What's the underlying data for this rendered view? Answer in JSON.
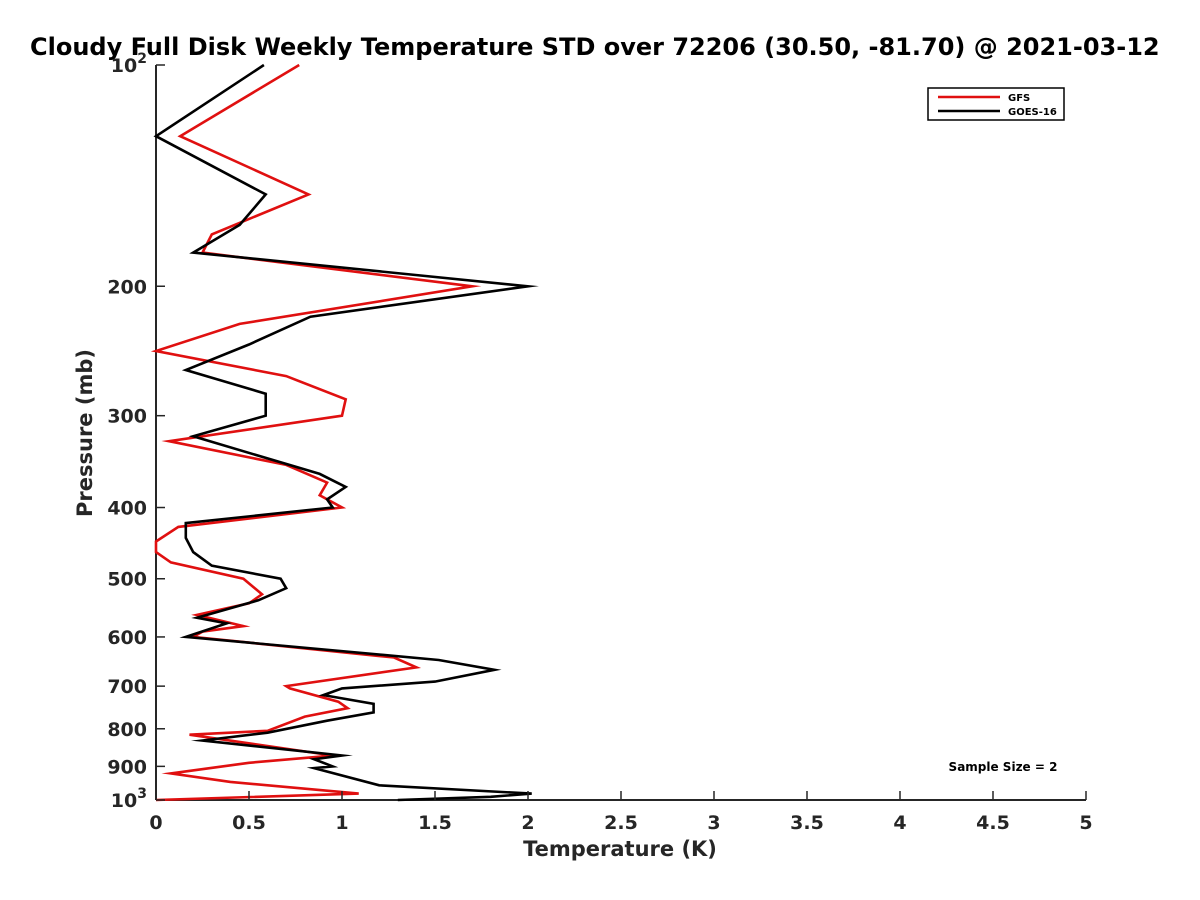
{
  "chart_data": {
    "type": "line",
    "title": "Cloudy Full Disk Weekly Temperature STD over 72206 (30.50, -81.70) @ 2021-03-12",
    "xlabel": "Temperature (K)",
    "ylabel": "Pressure (mb)",
    "xlim": [
      0,
      5
    ],
    "ylim": [
      100,
      1000
    ],
    "y_scale": "log",
    "y_reversed": true,
    "x_ticks": [
      "0",
      "0.5",
      "1",
      "1.5",
      "2",
      "2.5",
      "3",
      "3.5",
      "4",
      "4.5",
      "5"
    ],
    "y_ticks": [
      {
        "value": 100,
        "base": "10",
        "exp": "2"
      },
      {
        "value": 200,
        "label": "200"
      },
      {
        "value": 300,
        "label": "300"
      },
      {
        "value": 400,
        "label": "400"
      },
      {
        "value": 500,
        "label": "500"
      },
      {
        "value": 600,
        "label": "600"
      },
      {
        "value": 700,
        "label": "700"
      },
      {
        "value": 800,
        "label": "800"
      },
      {
        "value": 900,
        "label": "900"
      },
      {
        "value": 1000,
        "base": "10",
        "exp": "3"
      }
    ],
    "legend_position": "top-right",
    "annotation": "Sample Size = 2",
    "series": [
      {
        "name": "GFS",
        "color": "#e01010",
        "points": [
          [
            0.77,
            100
          ],
          [
            0.13,
            125
          ],
          [
            0.82,
            150
          ],
          [
            0.3,
            170
          ],
          [
            0.25,
            180
          ],
          [
            1.7,
            200
          ],
          [
            0.45,
            225
          ],
          [
            0.0,
            245
          ],
          [
            0.7,
            265
          ],
          [
            1.02,
            285
          ],
          [
            1.0,
            300
          ],
          [
            0.07,
            325
          ],
          [
            0.7,
            350
          ],
          [
            0.92,
            370
          ],
          [
            0.88,
            385
          ],
          [
            1.0,
            400
          ],
          [
            0.12,
            425
          ],
          [
            0.0,
            445
          ],
          [
            0.0,
            460
          ],
          [
            0.08,
            475
          ],
          [
            0.47,
            500
          ],
          [
            0.57,
            525
          ],
          [
            0.5,
            540
          ],
          [
            0.22,
            560
          ],
          [
            0.47,
            580
          ],
          [
            0.25,
            590
          ],
          [
            0.2,
            600
          ],
          [
            1.28,
            640
          ],
          [
            1.4,
            660
          ],
          [
            0.7,
            700
          ],
          [
            0.72,
            705
          ],
          [
            0.98,
            735
          ],
          [
            1.03,
            750
          ],
          [
            0.8,
            770
          ],
          [
            0.6,
            805
          ],
          [
            0.18,
            815
          ],
          [
            0.95,
            870
          ],
          [
            0.5,
            890
          ],
          [
            0.08,
            920
          ],
          [
            0.4,
            945
          ],
          [
            1.09,
            980
          ],
          [
            0.0,
            1000
          ]
        ]
      },
      {
        "name": "GOES-16",
        "color": "#000000",
        "points": [
          [
            0.58,
            100
          ],
          [
            0.0,
            125
          ],
          [
            0.59,
            150
          ],
          [
            0.45,
            165
          ],
          [
            0.2,
            180
          ],
          [
            2.0,
            200
          ],
          [
            0.83,
            220
          ],
          [
            0.5,
            240
          ],
          [
            0.16,
            260
          ],
          [
            0.59,
            280
          ],
          [
            0.59,
            300
          ],
          [
            0.2,
            320
          ],
          [
            0.88,
            360
          ],
          [
            1.02,
            375
          ],
          [
            0.92,
            390
          ],
          [
            0.95,
            400
          ],
          [
            0.16,
            420
          ],
          [
            0.16,
            440
          ],
          [
            0.2,
            460
          ],
          [
            0.3,
            480
          ],
          [
            0.67,
            500
          ],
          [
            0.7,
            515
          ],
          [
            0.55,
            535
          ],
          [
            0.22,
            565
          ],
          [
            0.38,
            575
          ],
          [
            0.16,
            600
          ],
          [
            1.52,
            645
          ],
          [
            1.82,
            665
          ],
          [
            1.5,
            690
          ],
          [
            1.0,
            705
          ],
          [
            0.9,
            720
          ],
          [
            1.17,
            740
          ],
          [
            1.17,
            760
          ],
          [
            0.92,
            780
          ],
          [
            0.6,
            810
          ],
          [
            0.25,
            830
          ],
          [
            1.0,
            870
          ],
          [
            0.85,
            880
          ],
          [
            0.95,
            900
          ],
          [
            0.85,
            905
          ],
          [
            1.2,
            955
          ],
          [
            2.02,
            980
          ],
          [
            1.8,
            990
          ],
          [
            1.3,
            1000
          ]
        ]
      }
    ]
  }
}
